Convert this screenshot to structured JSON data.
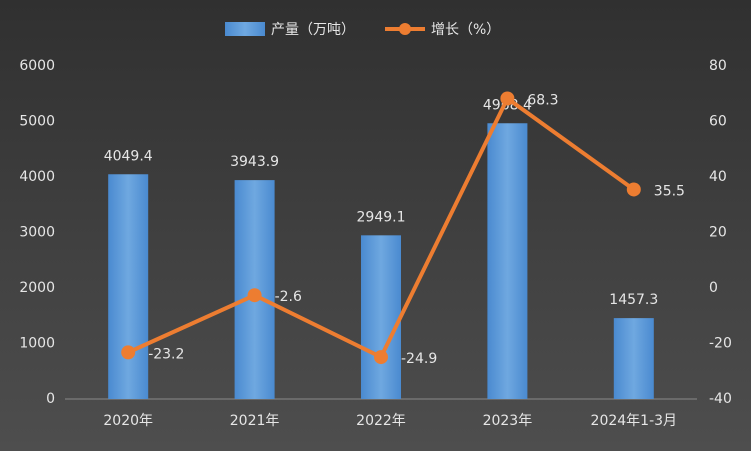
{
  "chart_data": {
    "type": "bar-line",
    "categories": [
      "2020年",
      "2021年",
      "2022年",
      "2023年",
      "2024年1-3月"
    ],
    "series": [
      {
        "name": "产量（万吨）",
        "type": "bar",
        "color": "#5b9bd5",
        "values": [
          4049.4,
          3943.9,
          2949.1,
          4968.4,
          1457.3
        ]
      },
      {
        "name": "增长（%）",
        "type": "line",
        "axis": "y2",
        "color": "#ed7d31",
        "values": [
          -23.2,
          -2.6,
          -24.9,
          68.3,
          35.5
        ]
      }
    ],
    "ylim": [
      0,
      6000
    ],
    "yticks": [
      0,
      1000,
      2000,
      3000,
      4000,
      5000,
      6000
    ],
    "y2lim": [
      -40,
      80
    ],
    "y2ticks": [
      -40,
      -20,
      0,
      20,
      40,
      60,
      80
    ],
    "grid": false
  }
}
